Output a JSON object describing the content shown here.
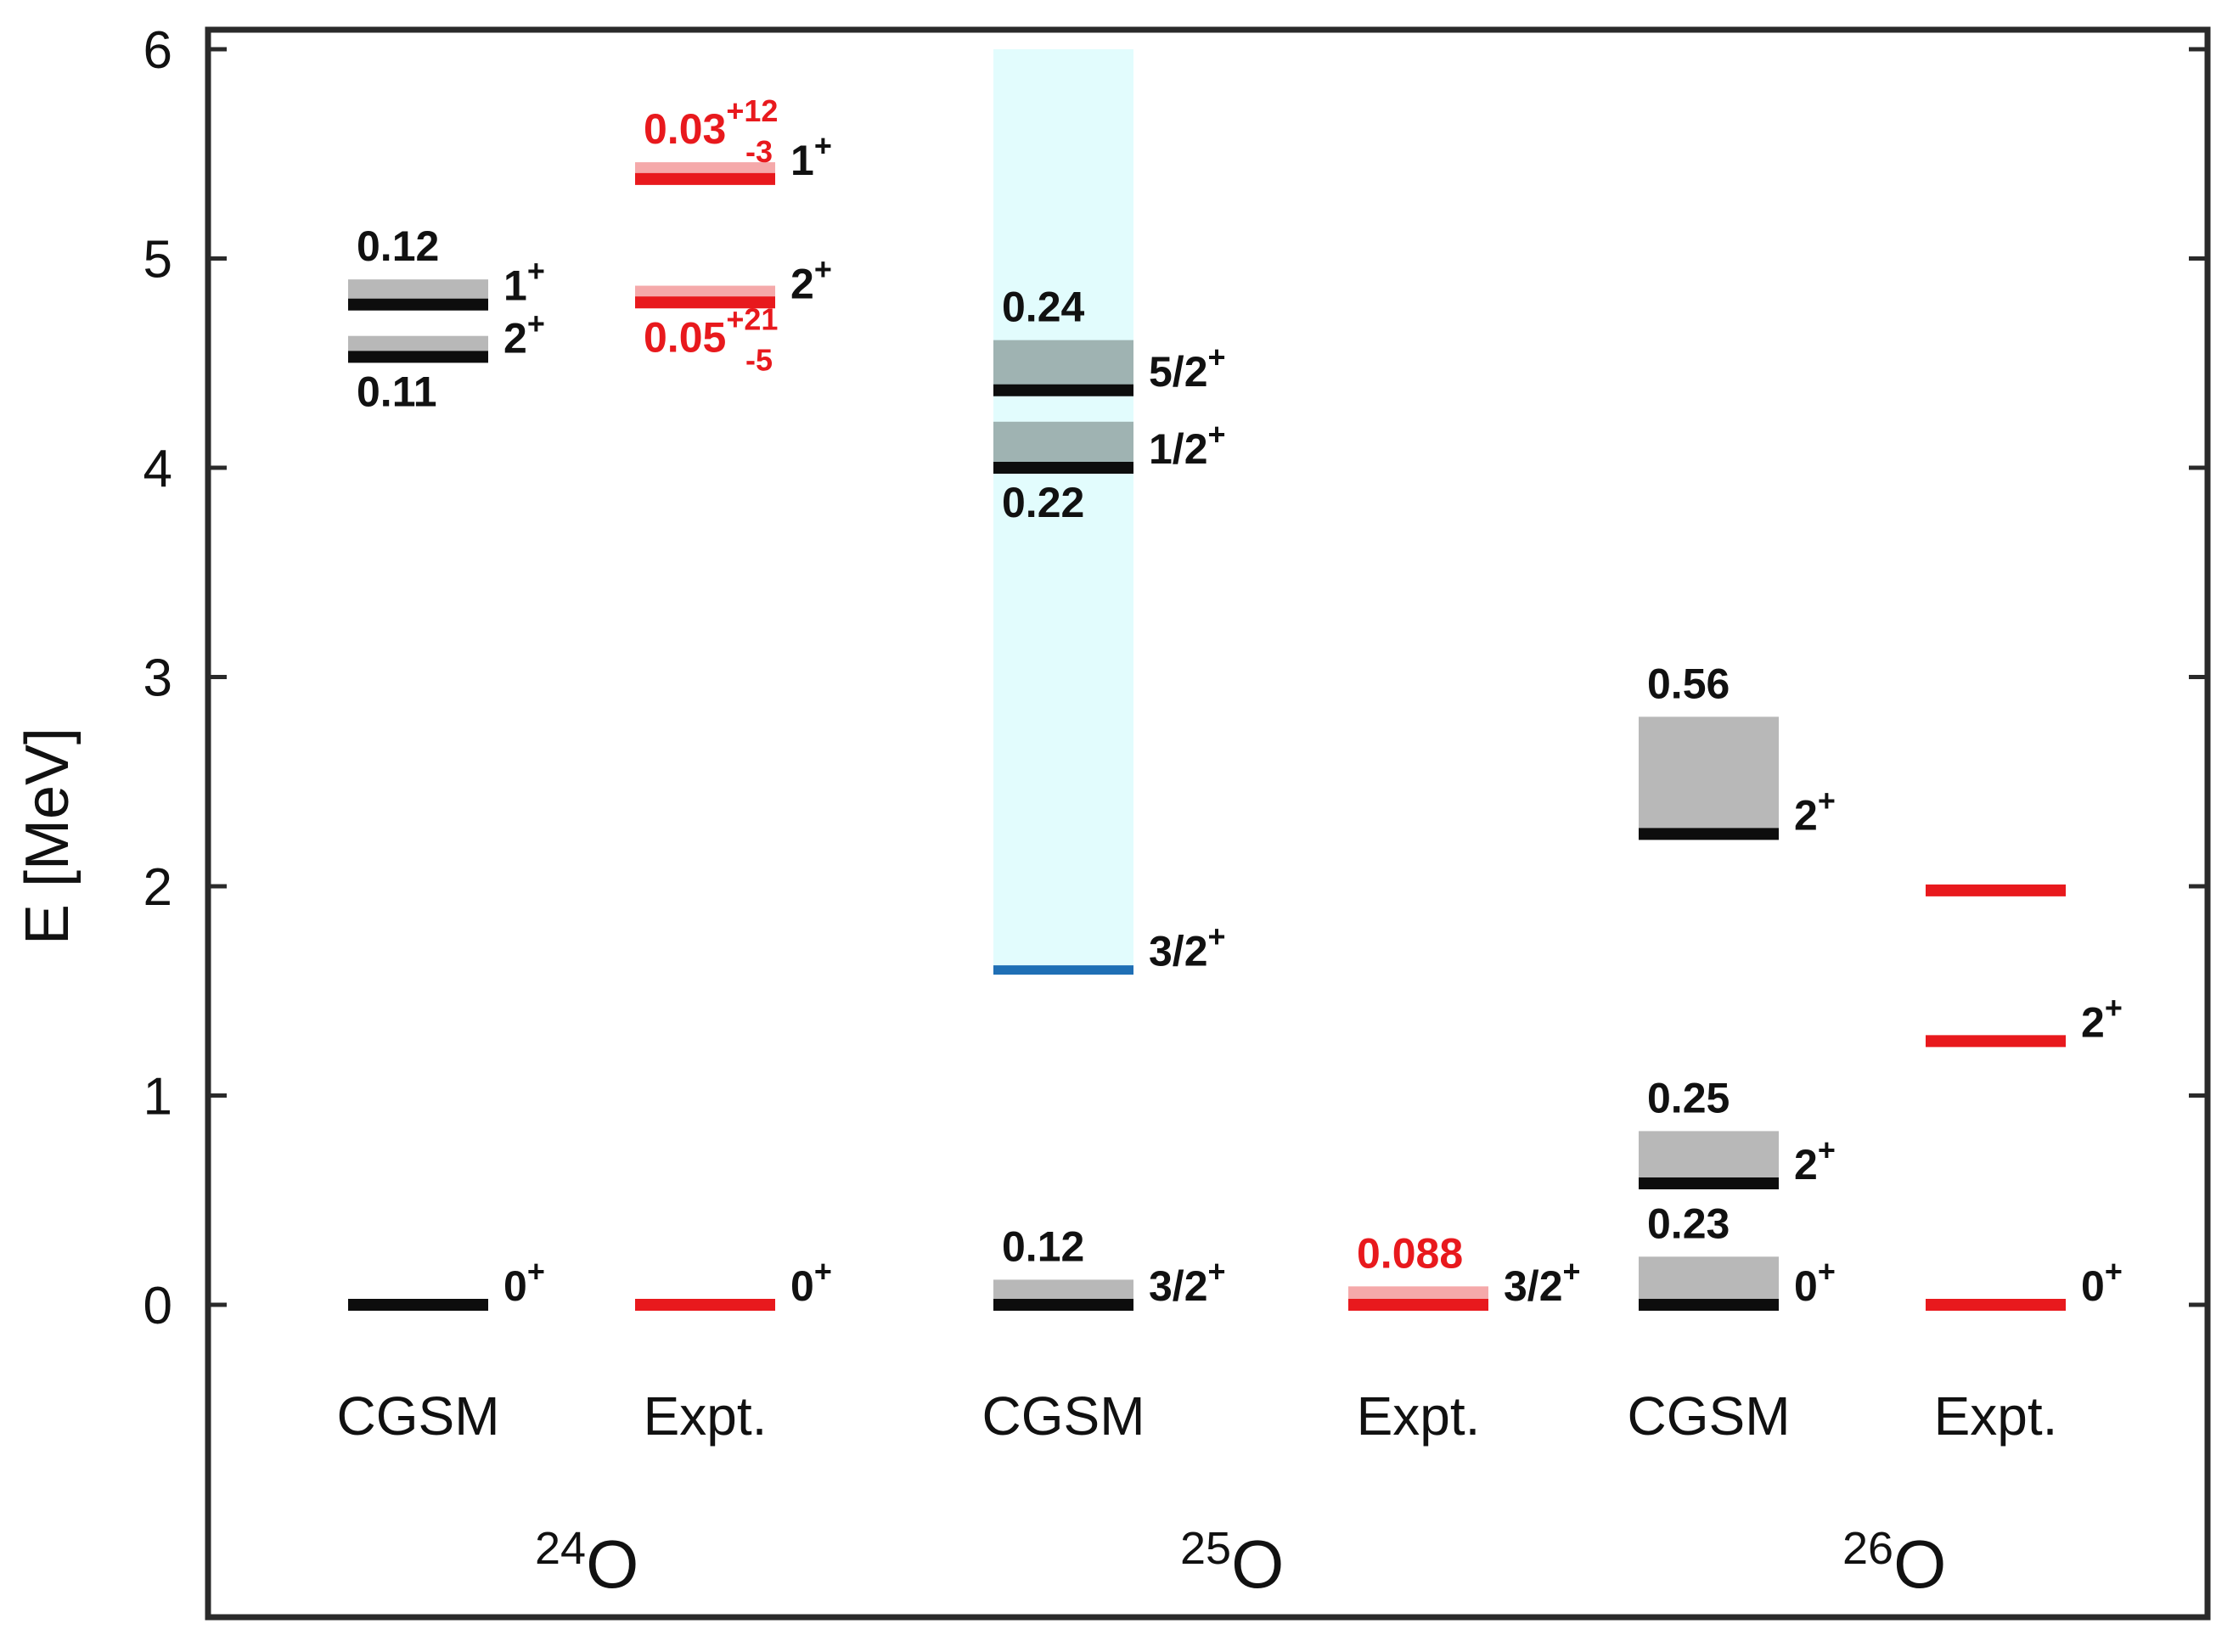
{
  "chart_data": {
    "type": "level-scheme",
    "ylabel": "E [MeV]",
    "ylim": [
      -1.4,
      6.15
    ],
    "yticks": [
      0,
      1,
      2,
      3,
      4,
      5,
      6
    ],
    "colors": {
      "theory_line": "#0d0d0d",
      "theory_band": "#b8b8b8",
      "theory_band_25O": "#9fb3b2",
      "expt_line": "#e8191d",
      "expt_band": "#f5a9aa",
      "continuum_band": "#e2fcfd",
      "threshold_line": "#1f6fb5"
    },
    "nuclei": [
      {
        "mass": "24",
        "element": "O",
        "columns": [
          {
            "method": "CGSM",
            "levels": [
              {
                "energy": 0.0,
                "spin": "0",
                "parity": "+",
                "kind": "theory"
              },
              {
                "energy": 4.53,
                "band_top": 4.63,
                "spin": "2",
                "parity": "+",
                "width_label": "0.11",
                "width_label_pos": "below",
                "kind": "theory"
              },
              {
                "energy": 4.78,
                "band_top": 4.9,
                "spin": "1",
                "parity": "+",
                "width_label": "0.12",
                "width_label_pos": "above",
                "kind": "theory"
              }
            ]
          },
          {
            "method": "Expt.",
            "levels": [
              {
                "energy": 0.0,
                "spin": "0",
                "parity": "+",
                "kind": "expt"
              },
              {
                "energy": 4.79,
                "band_top": 4.87,
                "spin": "2",
                "parity": "+",
                "width_label": "0.05",
                "width_sup": "+21",
                "width_sub": "-5",
                "width_label_pos": "below",
                "kind": "expt"
              },
              {
                "energy": 5.38,
                "band_top": 5.46,
                "spin": "1",
                "parity": "+",
                "width_label": "0.03",
                "width_sup": "+12",
                "width_sub": "-3",
                "width_label_pos": "above",
                "kind": "expt"
              }
            ]
          }
        ]
      },
      {
        "mass": "25",
        "element": "O",
        "continuum": {
          "from": 1.6,
          "to": 6.0
        },
        "columns": [
          {
            "method": "CGSM",
            "levels": [
              {
                "energy": 0.0,
                "band_top": 0.12,
                "spin": "3/2",
                "parity": "+",
                "width_label": "0.12",
                "width_label_pos": "above",
                "kind": "theory"
              },
              {
                "energy": 1.6,
                "spin": "3/2",
                "parity": "+",
                "kind": "threshold"
              },
              {
                "energy": 4.0,
                "band_top": 4.22,
                "spin": "1/2",
                "parity": "+",
                "width_label": "0.22",
                "width_label_pos": "below",
                "kind": "theory25"
              },
              {
                "energy": 4.37,
                "band_top": 4.61,
                "spin": "5/2",
                "parity": "+",
                "width_label": "0.24",
                "width_label_pos": "above",
                "kind": "theory25"
              }
            ]
          },
          {
            "method": "Expt.",
            "levels": [
              {
                "energy": 0.0,
                "band_top": 0.088,
                "spin": "3/2",
                "parity": "+",
                "width_label": "0.088",
                "width_label_pos": "above",
                "kind": "expt"
              }
            ]
          }
        ]
      },
      {
        "mass": "26",
        "element": "O",
        "columns": [
          {
            "method": "CGSM",
            "levels": [
              {
                "energy": 0.0,
                "band_top": 0.23,
                "spin": "0",
                "parity": "+",
                "width_label": "0.23",
                "width_label_pos": "above",
                "kind": "theory"
              },
              {
                "energy": 0.58,
                "band_top": 0.83,
                "spin": "2",
                "parity": "+",
                "width_label": "0.25",
                "width_label_pos": "above",
                "kind": "theory"
              },
              {
                "energy": 2.25,
                "band_top": 2.81,
                "spin": "2",
                "parity": "+",
                "width_label": "0.56",
                "width_label_pos": "above",
                "kind": "theory"
              }
            ]
          },
          {
            "method": "Expt.",
            "levels": [
              {
                "energy": 0.0,
                "spin": "0",
                "parity": "+",
                "kind": "expt"
              },
              {
                "energy": 1.26,
                "spin": "2",
                "parity": "+",
                "kind": "expt"
              },
              {
                "energy": 1.98,
                "kind": "expt"
              }
            ]
          }
        ]
      }
    ]
  }
}
